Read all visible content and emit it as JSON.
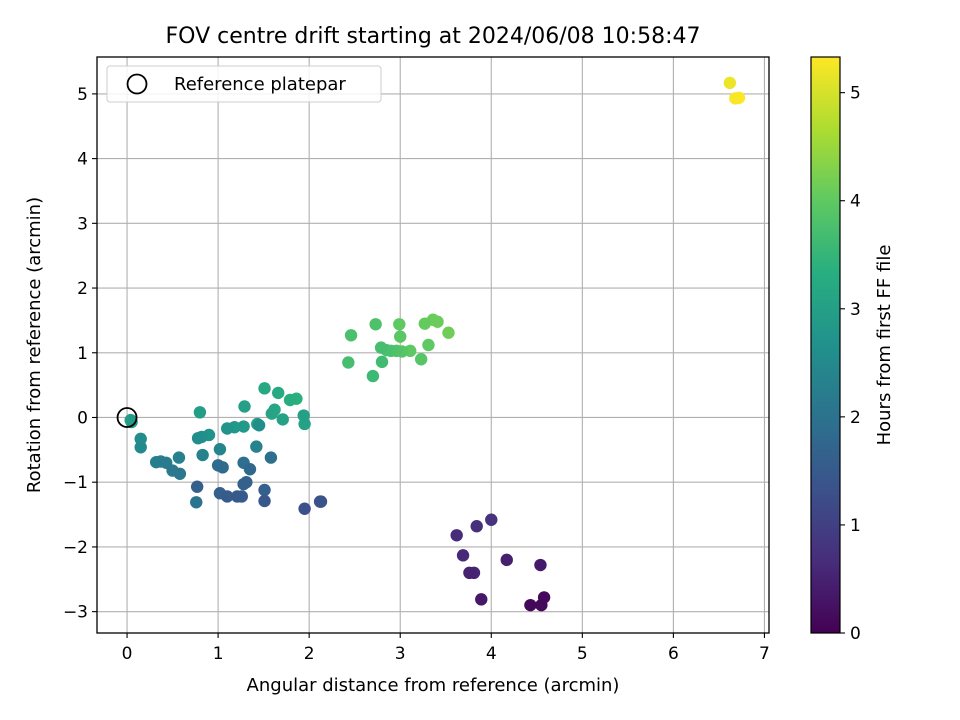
{
  "chart_data": {
    "type": "scatter",
    "title": "FOV centre drift starting at 2024/06/08 10:58:47",
    "xlabel": "Angular distance from reference (arcmin)",
    "ylabel": "Rotation from reference (arcmin)",
    "xlim": [
      -0.33,
      7.05
    ],
    "ylim": [
      -3.33,
      5.57
    ],
    "xticks": [
      0,
      1,
      2,
      3,
      4,
      5,
      6,
      7
    ],
    "yticks": [
      -3,
      -2,
      -1,
      0,
      1,
      2,
      3,
      4,
      5
    ],
    "grid": true,
    "legend": {
      "position": "top-left",
      "entries": [
        "Reference platepar"
      ]
    },
    "reference_point": {
      "x": 0,
      "y": 0
    },
    "colorbar": {
      "label": "Hours from first FF file",
      "range": [
        0,
        5.33
      ],
      "ticks": [
        0,
        1,
        2,
        3,
        4,
        5
      ],
      "colormap": "viridis"
    },
    "series": [
      {
        "x": [
          4.43,
          4.55,
          4.58,
          3.89,
          4.54,
          4.17,
          3.76,
          3.81,
          3.69,
          3.62,
          3.84,
          4.0
        ],
        "y": [
          -2.9,
          -2.9,
          -2.78,
          -2.81,
          -2.28,
          -2.2,
          -2.4,
          -2.4,
          -2.13,
          -1.82,
          -1.68,
          -1.58
        ],
        "t": [
          0.1,
          0.12,
          0.14,
          0.35,
          0.38,
          0.45,
          0.5,
          0.55,
          0.6,
          0.65,
          0.72,
          0.78
        ]
      },
      {
        "x": [
          1.95,
          2.12,
          2.13,
          1.51,
          1.21,
          1.26,
          1.1,
          1.02,
          0.77,
          1.51,
          1.28,
          1.31,
          1.35,
          1.05,
          1.0,
          1.28,
          1.58
        ],
        "y": [
          -1.41,
          -1.3,
          -1.3,
          -1.29,
          -1.22,
          -1.22,
          -1.22,
          -1.17,
          -1.07,
          -1.12,
          -1.03,
          -1.0,
          -0.8,
          -0.77,
          -0.74,
          -0.7,
          -0.62
        ],
        "t": [
          1.3,
          1.35,
          1.37,
          1.45,
          1.5,
          1.52,
          1.55,
          1.6,
          1.62,
          1.6,
          1.65,
          1.68,
          1.8,
          1.85,
          1.9,
          1.92,
          1.95
        ]
      },
      {
        "x": [
          0.76,
          0.58,
          0.5,
          0.43,
          0.37,
          0.32,
          0.57,
          0.83,
          1.02,
          0.15,
          0.15,
          0.78,
          0.82,
          0.9,
          1.1,
          1.18,
          1.28,
          0.05,
          0.04,
          0.8,
          1.29,
          1.43,
          1.45,
          1.42
        ],
        "y": [
          -1.31,
          -0.87,
          -0.82,
          -0.7,
          -0.68,
          -0.69,
          -0.62,
          -0.58,
          -0.49,
          -0.46,
          -0.33,
          -0.32,
          -0.3,
          -0.27,
          -0.17,
          -0.15,
          -0.14,
          -0.07,
          -0.04,
          0.08,
          0.17,
          -0.1,
          -0.12,
          -0.45
        ],
        "t": [
          2.05,
          2.1,
          2.15,
          2.2,
          2.25,
          2.28,
          2.3,
          2.35,
          2.4,
          2.5,
          2.55,
          2.6,
          2.65,
          2.7,
          2.75,
          2.8,
          2.85,
          2.9,
          2.92,
          2.95,
          3.0,
          3.02,
          2.6,
          2.35
        ]
      },
      {
        "x": [
          1.51,
          1.66,
          1.59,
          1.62,
          1.71,
          1.79,
          1.86,
          1.94,
          1.95
        ],
        "y": [
          0.45,
          0.38,
          0.06,
          0.12,
          -0.03,
          0.27,
          0.29,
          0.03,
          -0.1
        ],
        "t": [
          3.2,
          3.25,
          3.1,
          3.15,
          3.05,
          3.3,
          3.35,
          3.0,
          3.05
        ]
      },
      {
        "x": [
          2.43,
          2.46,
          2.73,
          2.7,
          2.8,
          2.79,
          2.85,
          2.9,
          2.96,
          3.02,
          3.0,
          3.11,
          3.23,
          3.31,
          3.27,
          3.36,
          3.41,
          3.53,
          2.99
        ],
        "y": [
          0.85,
          1.27,
          1.44,
          0.64,
          0.86,
          1.08,
          1.04,
          1.03,
          1.03,
          1.02,
          1.25,
          1.03,
          0.9,
          1.12,
          1.45,
          1.51,
          1.48,
          1.31,
          1.44
        ],
        "t": [
          3.7,
          3.75,
          3.8,
          3.6,
          3.65,
          3.7,
          3.75,
          3.8,
          3.85,
          3.9,
          3.95,
          4.0,
          3.9,
          4.0,
          4.05,
          4.1,
          4.1,
          4.15,
          4.0
        ]
      },
      {
        "x": [
          6.62,
          6.68,
          6.72
        ],
        "y": [
          5.17,
          4.93,
          4.94
        ],
        "t": [
          5.2,
          5.3,
          5.33
        ]
      }
    ]
  }
}
